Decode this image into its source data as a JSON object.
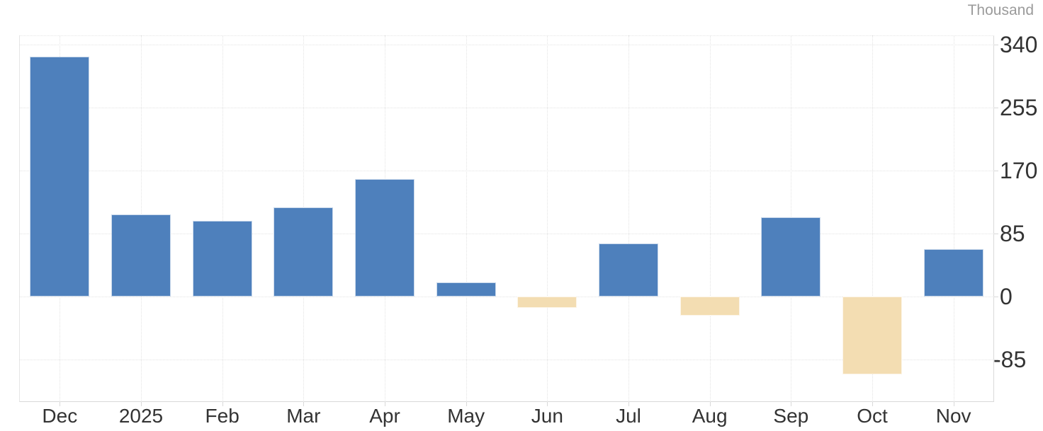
{
  "chart_data": {
    "type": "bar",
    "title": "",
    "unit_label": "Thousand",
    "categories": [
      "Dec",
      "2025",
      "Feb",
      "Mar",
      "Apr",
      "May",
      "Jun",
      "Jul",
      "Aug",
      "Sep",
      "Oct",
      "Nov"
    ],
    "values": [
      323,
      111,
      102,
      120,
      158,
      19,
      -15,
      72,
      -26,
      107,
      -105,
      64
    ],
    "y_ticks": [
      340,
      255,
      170,
      85,
      0,
      -85
    ],
    "ylim": [
      -142,
      352
    ],
    "grid": "dotted",
    "legend": "none",
    "y_axis_side": "right",
    "colors": {
      "positive_bar": "#4e80bc",
      "negative_bar": "#f3ddb2",
      "gridline": "#e3e3e3",
      "axis_line": "#d9d9d9",
      "tick_label": "#333333",
      "unit_label": "#9b9b9b"
    }
  }
}
